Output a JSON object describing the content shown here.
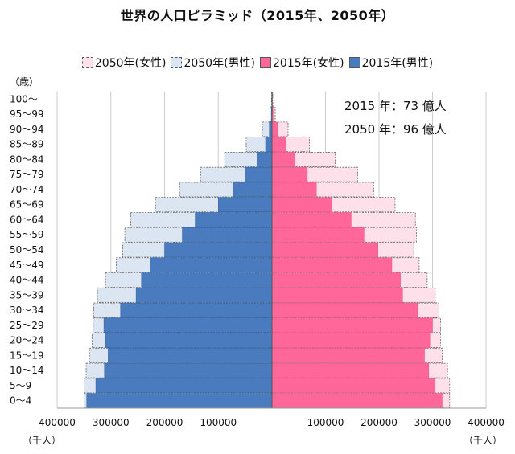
{
  "chart_data": {
    "type": "bar",
    "title": "世界の人口ピラミッド（2015年、2050年）",
    "legend": [
      {
        "label": "2050年(女性)",
        "color": "#fde0ea",
        "style": "dashed"
      },
      {
        "label": "2050年(男性)",
        "color": "#dce6f2",
        "style": "dashed"
      },
      {
        "label": "2015年(女性)",
        "color": "#ff6699",
        "style": "solid"
      },
      {
        "label": "2015年(男性)",
        "color": "#4a7bbf",
        "style": "solid"
      }
    ],
    "ylabel": "（歳）",
    "xlabel_left": "（千人）",
    "xlabel_right": "（千人）",
    "xlim": [
      -400000,
      400000
    ],
    "xticks": [
      {
        "value": -400000,
        "label": "400000"
      },
      {
        "value": -300000,
        "label": "300000"
      },
      {
        "value": -200000,
        "label": "200000"
      },
      {
        "value": -100000,
        "label": "100000"
      },
      {
        "value": 100000,
        "label": "100000"
      },
      {
        "value": 200000,
        "label": "200000"
      },
      {
        "value": 300000,
        "label": "300000"
      },
      {
        "value": 400000,
        "label": "400000"
      }
    ],
    "categories": [
      "100～",
      "95～99",
      "90～94",
      "85～89",
      "80～84",
      "75～79",
      "70～74",
      "65～69",
      "60～64",
      "55～59",
      "50～54",
      "45～49",
      "40～44",
      "35～39",
      "30～34",
      "25～29",
      "20～24",
      "15～19",
      "10～14",
      "5～9",
      "0～4"
    ],
    "series": [
      {
        "name": "2050年(女性)",
        "values": [
          1500,
          6000,
          30000,
          70000,
          118000,
          160000,
          190000,
          230000,
          268000,
          270000,
          265000,
          275000,
          290000,
          305000,
          312000,
          315000,
          315000,
          318000,
          328000,
          332000,
          332000
        ]
      },
      {
        "name": "2050年(男性)",
        "values": [
          1000,
          4000,
          18000,
          48000,
          88000,
          133000,
          172000,
          217000,
          263000,
          274000,
          278000,
          290000,
          310000,
          325000,
          332000,
          333000,
          335000,
          340000,
          346000,
          350000,
          350000
        ]
      },
      {
        "name": "2015年(女性)",
        "values": [
          500,
          2000,
          10000,
          26000,
          43000,
          66000,
          83000,
          112000,
          148000,
          172000,
          198000,
          224000,
          240000,
          244000,
          272000,
          300000,
          295000,
          285000,
          293000,
          305000,
          318000
        ]
      },
      {
        "name": "2015年(男性)",
        "values": [
          300,
          1000,
          5000,
          12000,
          28000,
          50000,
          72000,
          100000,
          143000,
          167000,
          200000,
          227000,
          243000,
          253000,
          282000,
          313000,
          310000,
          305000,
          312000,
          328000,
          345000
        ]
      }
    ],
    "annotations": [
      "2015 年：73 億人",
      "2050 年：96 億人"
    ],
    "grid": true
  }
}
